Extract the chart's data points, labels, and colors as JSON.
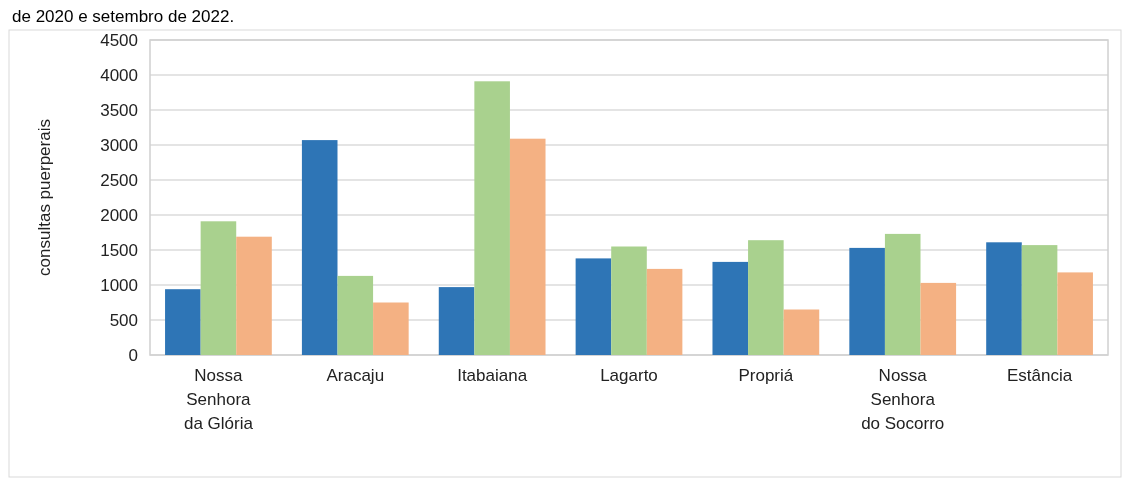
{
  "chart_data": {
    "type": "bar",
    "title": "de 2020 e setembro de 2022.",
    "ylabel": "consultas puerperais",
    "categories": [
      "Nossa Senhora da Glória",
      "Aracaju",
      "Itabaiana",
      "Lagarto",
      "Propriá",
      "Nossa Senhora do Socorro",
      "Estância"
    ],
    "series": [
      {
        "color": "#2e75b6",
        "values": [
          940,
          3070,
          970,
          1380,
          1330,
          1530,
          1610
        ]
      },
      {
        "color": "#a9d18e",
        "values": [
          1910,
          1130,
          3910,
          1550,
          1640,
          1730,
          1570
        ]
      },
      {
        "color": "#f4b183",
        "values": [
          1690,
          750,
          3090,
          1230,
          650,
          1030,
          1180
        ]
      }
    ],
    "ylim": [
      0,
      4500
    ],
    "yticks": [
      0,
      500,
      1000,
      1500,
      2000,
      2500,
      3000,
      3500,
      4000,
      4500
    ],
    "grid": "y"
  }
}
